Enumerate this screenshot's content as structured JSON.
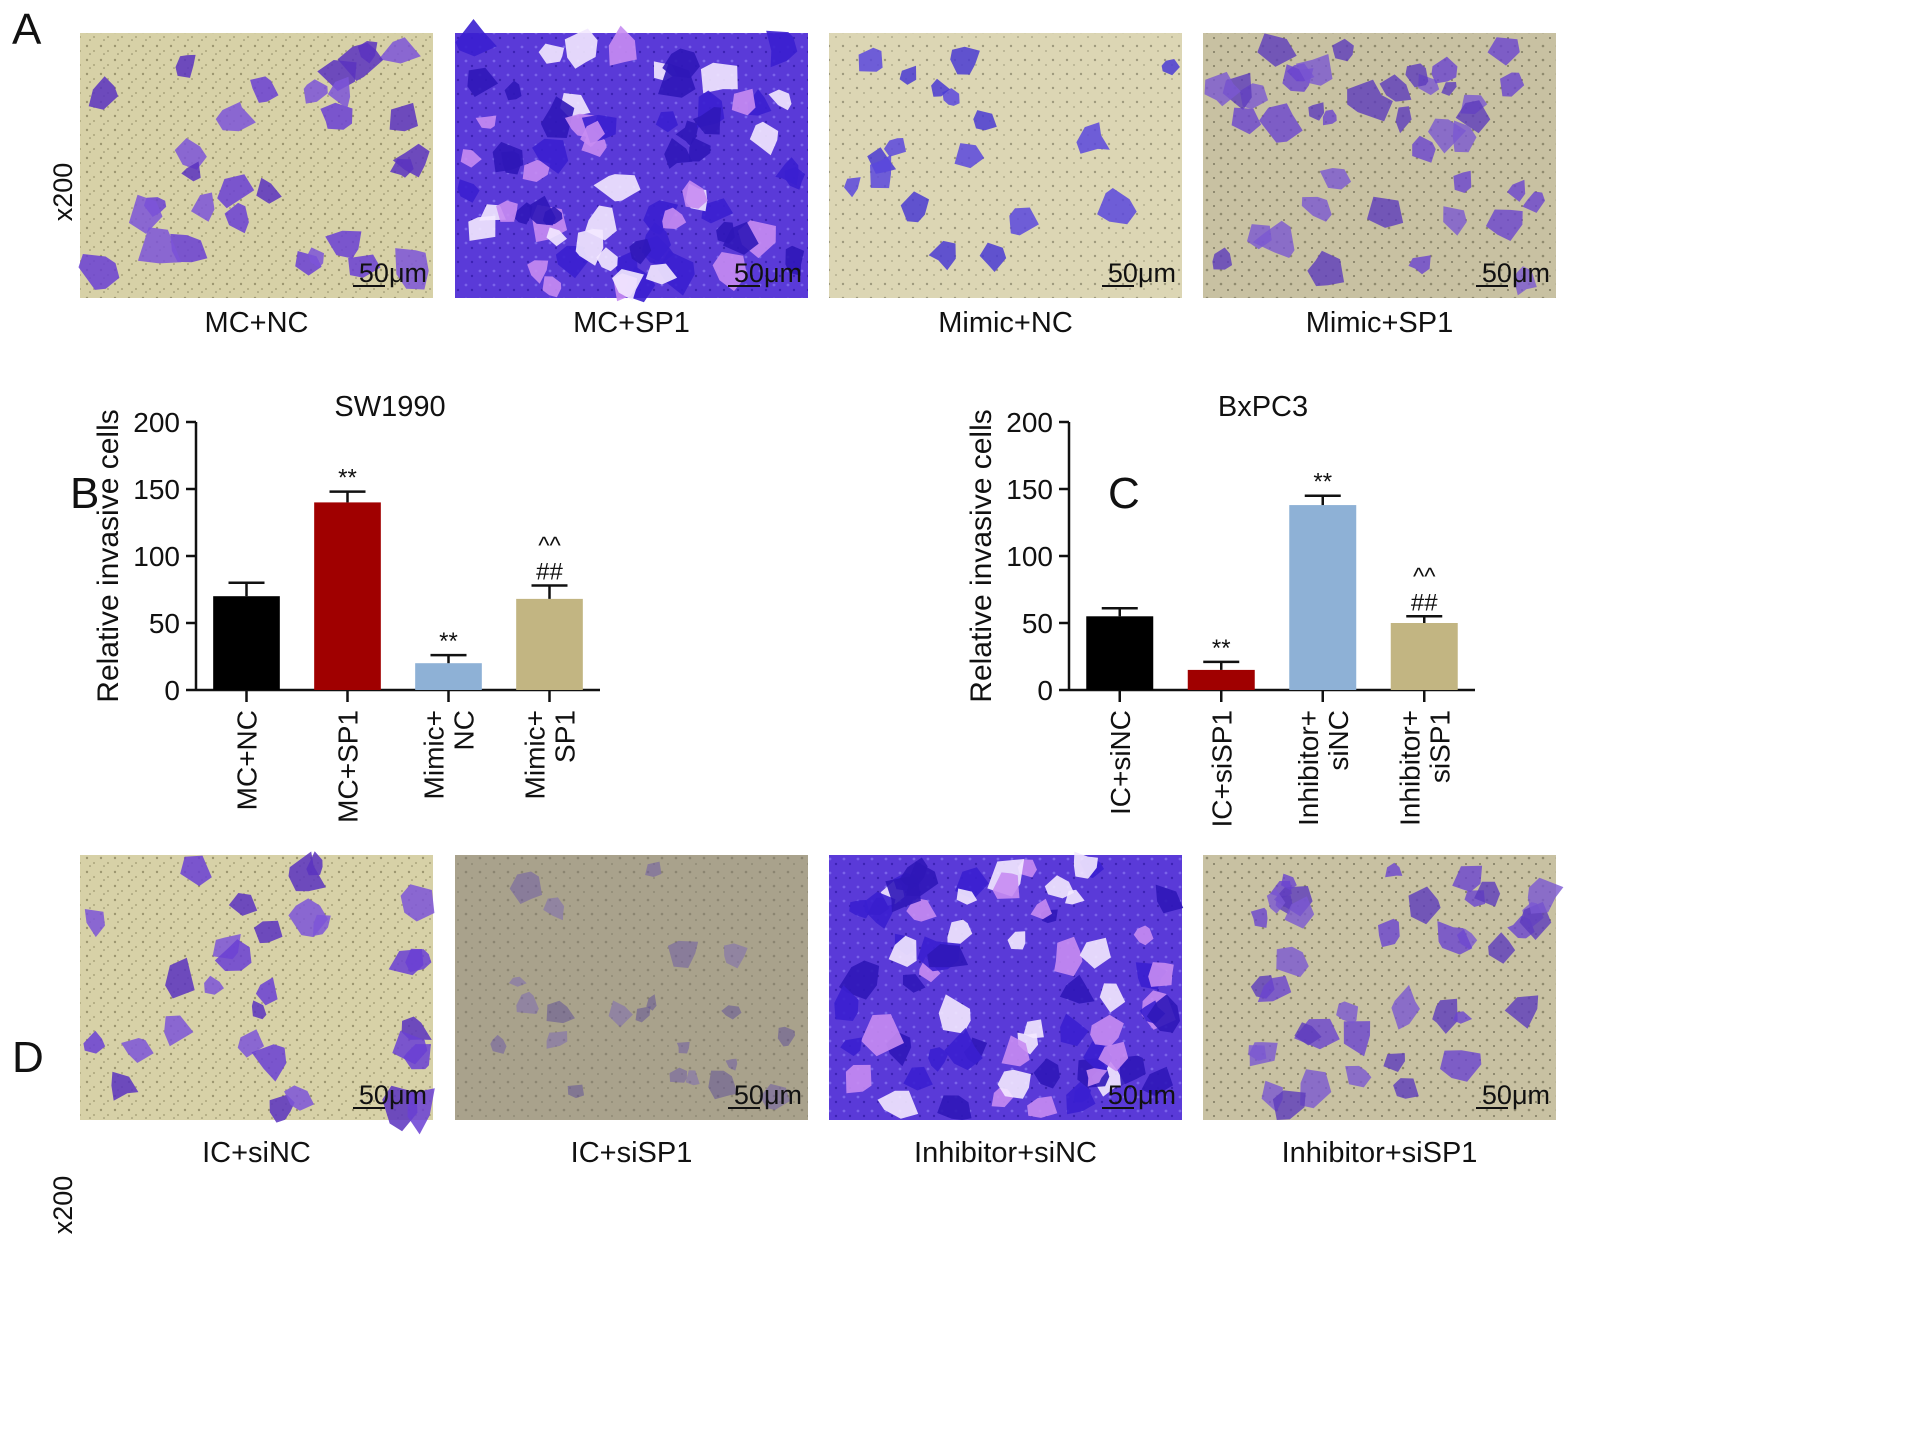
{
  "panel_labels": [
    "A",
    "B",
    "C",
    "D"
  ],
  "magnification": "x200",
  "scale_bar": "50μm",
  "image_rows": [
    {
      "id": "A",
      "images": [
        {
          "caption": "MC+NC",
          "stain": "light"
        },
        {
          "caption": "MC+SP1",
          "stain": "dense"
        },
        {
          "caption": "Mimic+NC",
          "stain": "sparse"
        },
        {
          "caption": "Mimic+SP1",
          "stain": "medium"
        }
      ]
    },
    {
      "id": "D",
      "images": [
        {
          "caption": "IC+siNC",
          "stain": "light"
        },
        {
          "caption": "IC+siSP1",
          "stain": "faint"
        },
        {
          "caption": "Inhibitor+siNC",
          "stain": "dense"
        },
        {
          "caption": "Inhibitor+siSP1",
          "stain": "medium"
        }
      ]
    }
  ],
  "colors": {
    "black_bar": "#000000",
    "red_bar": "#a00000",
    "blue_bar": "#8eb1d6",
    "tan_bar": "#c2b582",
    "stain_purple": "#6a3fd4",
    "field_light": "#d7d1a7",
    "field_gray": "#a9a28c"
  },
  "chart_data": [
    {
      "panel": "B",
      "type": "bar",
      "title": "SW1990",
      "ylabel": "Relative invasive cells",
      "xlabel": "",
      "ylim": [
        0,
        200
      ],
      "yticks": [
        0,
        50,
        100,
        150,
        200
      ],
      "categories": [
        [
          "MC+NC"
        ],
        [
          "MC+SP1"
        ],
        [
          "Mimic+",
          "NC"
        ],
        [
          "Mimic+",
          "SP1"
        ]
      ],
      "values": [
        70,
        140,
        20,
        68
      ],
      "errors": [
        10,
        8,
        6,
        10
      ],
      "bar_colors": [
        "#000000",
        "#a00000",
        "#8eb1d6",
        "#c2b582"
      ],
      "annotations": [
        [],
        [
          "**"
        ],
        [
          "**"
        ],
        [
          "##",
          "^^"
        ]
      ]
    },
    {
      "panel": "C",
      "type": "bar",
      "title": "BxPC3",
      "ylabel": "Relative invasive cells",
      "xlabel": "",
      "ylim": [
        0,
        200
      ],
      "yticks": [
        0,
        50,
        100,
        150,
        200
      ],
      "categories": [
        [
          "IC+siNC"
        ],
        [
          "IC+siSP1"
        ],
        [
          "Inhibitor+",
          "siNC"
        ],
        [
          "Inhibitor+",
          "siSP1"
        ]
      ],
      "values": [
        55,
        15,
        138,
        50
      ],
      "errors": [
        6,
        6,
        7,
        5
      ],
      "bar_colors": [
        "#000000",
        "#a00000",
        "#8eb1d6",
        "#c2b582"
      ],
      "annotations": [
        [],
        [
          "**"
        ],
        [
          "**"
        ],
        [
          "##",
          "^^"
        ]
      ]
    }
  ]
}
